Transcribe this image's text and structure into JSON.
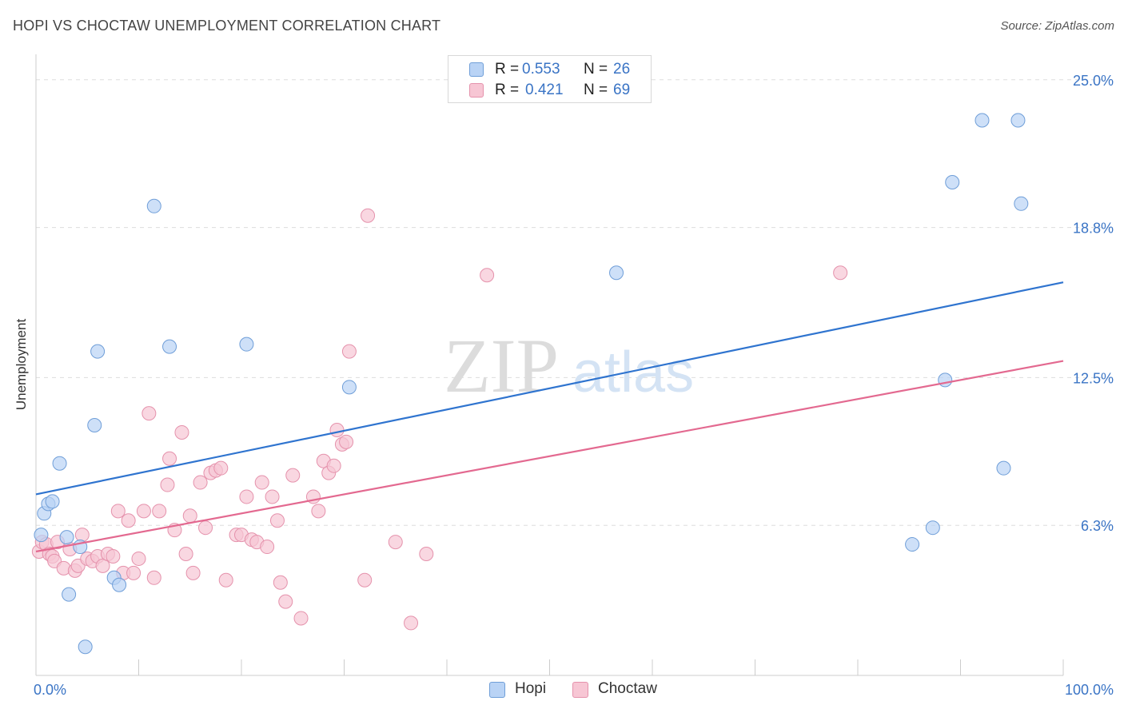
{
  "title": "HOPI VS CHOCTAW UNEMPLOYMENT CORRELATION CHART",
  "source": "Source: ZipAtlas.com",
  "watermark": {
    "zip": "ZIP",
    "atlas": "atlas"
  },
  "legend_top": [
    {
      "r_label": "R =",
      "r_value": "0.553",
      "n_label": "N =",
      "n_value": "26"
    },
    {
      "r_label": "R =",
      "r_value": "0.421",
      "n_label": "N =",
      "n_value": "69"
    }
  ],
  "legend_bottom": [
    "Hopi",
    "Choctaw"
  ],
  "colors": {
    "hopi_fill": "#b9d3f5",
    "hopi_stroke": "#6f9ed8",
    "hopi_line": "#2f74cf",
    "choctaw_fill": "#f7c6d4",
    "choctaw_stroke": "#e592ac",
    "choctaw_line": "#e36990",
    "tick_label": "#3a74c5",
    "grid": "#dddddd"
  },
  "chart_data": {
    "type": "scatter",
    "title": "HOPI VS CHOCTAW UNEMPLOYMENT CORRELATION CHART",
    "xlabel": "",
    "ylabel": "Unemployment",
    "xlim": [
      0,
      100
    ],
    "ylim": [
      0,
      26
    ],
    "x_tick_labels": [
      "0.0%",
      "100.0%"
    ],
    "y_ticks": [
      6.3,
      12.5,
      18.8,
      25.0
    ],
    "y_tick_labels": [
      "6.3%",
      "12.5%",
      "18.8%",
      "25.0%"
    ],
    "grid": "horizontal dashed",
    "series": [
      {
        "name": "Hopi",
        "R": 0.553,
        "N": 26,
        "trend": {
          "x": [
            0,
            100
          ],
          "y": [
            7.6,
            16.5
          ]
        },
        "points": [
          [
            0.5,
            5.9
          ],
          [
            0.8,
            6.8
          ],
          [
            1.2,
            7.2
          ],
          [
            1.6,
            7.3
          ],
          [
            2.3,
            8.9
          ],
          [
            3.0,
            5.8
          ],
          [
            3.2,
            3.4
          ],
          [
            4.3,
            5.4
          ],
          [
            4.8,
            1.2
          ],
          [
            5.7,
            10.5
          ],
          [
            6.0,
            13.6
          ],
          [
            7.6,
            4.1
          ],
          [
            8.1,
            3.8
          ],
          [
            11.5,
            19.7
          ],
          [
            13.0,
            13.8
          ],
          [
            20.5,
            13.9
          ],
          [
            30.5,
            12.1
          ],
          [
            56.5,
            16.9
          ],
          [
            85.3,
            5.5
          ],
          [
            87.3,
            6.2
          ],
          [
            88.5,
            12.4
          ],
          [
            89.2,
            20.7
          ],
          [
            92.1,
            23.3
          ],
          [
            94.2,
            8.7
          ],
          [
            95.6,
            23.3
          ],
          [
            95.9,
            19.8
          ]
        ]
      },
      {
        "name": "Choctaw",
        "R": 0.421,
        "N": 69,
        "trend": {
          "x": [
            0,
            100
          ],
          "y": [
            5.2,
            13.2
          ]
        },
        "points": [
          [
            0.3,
            5.2
          ],
          [
            0.6,
            5.6
          ],
          [
            1.0,
            5.5
          ],
          [
            1.3,
            5.1
          ],
          [
            1.6,
            5.0
          ],
          [
            1.8,
            4.8
          ],
          [
            2.1,
            5.6
          ],
          [
            2.7,
            4.5
          ],
          [
            3.3,
            5.3
          ],
          [
            3.8,
            4.4
          ],
          [
            4.1,
            4.6
          ],
          [
            4.5,
            5.9
          ],
          [
            5.0,
            4.9
          ],
          [
            5.5,
            4.8
          ],
          [
            6.0,
            5.0
          ],
          [
            6.5,
            4.6
          ],
          [
            7.0,
            5.1
          ],
          [
            7.5,
            5.0
          ],
          [
            8.0,
            6.9
          ],
          [
            8.5,
            4.3
          ],
          [
            9.0,
            6.5
          ],
          [
            9.5,
            4.3
          ],
          [
            10.0,
            4.9
          ],
          [
            10.5,
            6.9
          ],
          [
            11.0,
            11.0
          ],
          [
            11.5,
            4.1
          ],
          [
            12.0,
            6.9
          ],
          [
            12.8,
            8.0
          ],
          [
            13.0,
            9.1
          ],
          [
            13.5,
            6.1
          ],
          [
            14.2,
            10.2
          ],
          [
            14.6,
            5.1
          ],
          [
            15.0,
            6.7
          ],
          [
            15.3,
            4.3
          ],
          [
            16.0,
            8.1
          ],
          [
            16.5,
            6.2
          ],
          [
            17.0,
            8.5
          ],
          [
            17.5,
            8.6
          ],
          [
            18.0,
            8.7
          ],
          [
            18.5,
            4.0
          ],
          [
            19.5,
            5.9
          ],
          [
            20.0,
            5.9
          ],
          [
            20.5,
            7.5
          ],
          [
            21.0,
            5.7
          ],
          [
            21.5,
            5.6
          ],
          [
            22.0,
            8.1
          ],
          [
            22.5,
            5.4
          ],
          [
            23.0,
            7.5
          ],
          [
            23.5,
            6.5
          ],
          [
            23.8,
            3.9
          ],
          [
            24.3,
            3.1
          ],
          [
            25.0,
            8.4
          ],
          [
            25.8,
            2.4
          ],
          [
            27.0,
            7.5
          ],
          [
            27.5,
            6.9
          ],
          [
            28.0,
            9.0
          ],
          [
            28.5,
            8.5
          ],
          [
            29.0,
            8.8
          ],
          [
            29.3,
            10.3
          ],
          [
            29.8,
            9.7
          ],
          [
            30.2,
            9.8
          ],
          [
            30.5,
            13.6
          ],
          [
            32.0,
            4.0
          ],
          [
            32.3,
            19.3
          ],
          [
            35.0,
            5.6
          ],
          [
            36.5,
            2.2
          ],
          [
            38.0,
            5.1
          ],
          [
            43.9,
            16.8
          ],
          [
            78.3,
            16.9
          ]
        ]
      }
    ]
  }
}
